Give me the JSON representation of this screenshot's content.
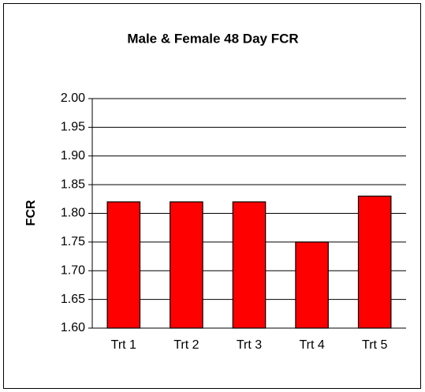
{
  "chart_data": {
    "type": "bar",
    "title": "Male & Female 48 Day FCR",
    "y_label": "FCR",
    "categories": [
      "Trt 1",
      "Trt 2",
      "Trt 3",
      "Trt 4",
      "Trt 5"
    ],
    "values": [
      1.82,
      1.82,
      1.82,
      1.75,
      1.83
    ],
    "color": "#ff0000",
    "ylim": [
      1.6,
      2.0
    ],
    "yticks": [
      {
        "value": 1.6,
        "label": "1.60"
      },
      {
        "value": 1.65,
        "label": "1.65"
      },
      {
        "value": 1.7,
        "label": "1.70"
      },
      {
        "value": 1.75,
        "label": "1.75"
      },
      {
        "value": 1.8,
        "label": "1.80"
      },
      {
        "value": 1.85,
        "label": "1.85"
      },
      {
        "value": 1.9,
        "label": "1.90"
      },
      {
        "value": 1.95,
        "label": "1.95"
      },
      {
        "value": 2.0,
        "label": "2.00"
      }
    ],
    "grid": true
  }
}
